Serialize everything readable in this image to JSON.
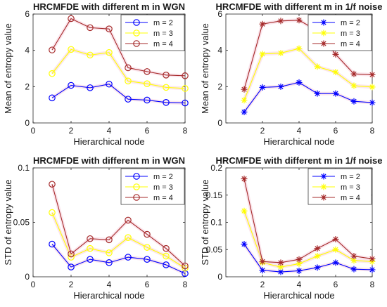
{
  "chart_data": [
    {
      "type": "line",
      "title": "HRCMFDE with different m in WGN",
      "xlabel": "Hierarchical node",
      "ylabel": "Mean of entropy value",
      "xlim": [
        0,
        8
      ],
      "ylim": [
        0,
        6
      ],
      "xticks": [
        "0",
        "2",
        "4",
        "6",
        "8"
      ],
      "yticks": [
        "0",
        "2",
        "4",
        "6"
      ],
      "marker": "circle",
      "legend_position": "top-right",
      "x": [
        1,
        2,
        3,
        4,
        5,
        6,
        7,
        8
      ],
      "series": [
        {
          "name": "m = 2",
          "color": "#0000ff",
          "values": [
            1.38,
            2.07,
            1.94,
            2.14,
            1.31,
            1.26,
            1.13,
            1.1
          ]
        },
        {
          "name": "m = 3",
          "color": "#ffff00",
          "values": [
            2.72,
            4.05,
            3.74,
            3.88,
            2.31,
            2.16,
            1.96,
            1.9
          ]
        },
        {
          "name": "m = 4",
          "color": "#a52a2a",
          "values": [
            4.02,
            5.75,
            5.25,
            5.18,
            3.04,
            2.83,
            2.64,
            2.6
          ]
        }
      ]
    },
    {
      "type": "line",
      "title": "HRCMFDE with different m in 1/f noise",
      "xlabel": "Hierarchical node",
      "ylabel": "Mean of entropy value",
      "xlim": [
        0,
        8
      ],
      "ylim": [
        0,
        6
      ],
      "xticks": [
        "2",
        "4",
        "6",
        "8"
      ],
      "yticks": [
        "0",
        "2",
        "4",
        "6"
      ],
      "marker": "star",
      "legend_position": "top-right",
      "x": [
        1,
        2,
        3,
        4,
        5,
        6,
        7,
        8
      ],
      "series": [
        {
          "name": "m = 2",
          "color": "#0000ff",
          "values": [
            0.6,
            1.96,
            2.0,
            2.23,
            1.62,
            1.62,
            1.19,
            1.12
          ]
        },
        {
          "name": "m = 3",
          "color": "#ffff00",
          "values": [
            1.25,
            3.8,
            3.85,
            4.1,
            3.1,
            2.8,
            2.05,
            1.98
          ]
        },
        {
          "name": "m = 4",
          "color": "#a52a2a",
          "values": [
            1.85,
            5.45,
            5.62,
            5.66,
            5.08,
            3.78,
            2.7,
            2.66
          ]
        }
      ]
    },
    {
      "type": "line",
      "title": "HRCMFDE with different m in WGN",
      "xlabel": "Hierarchical node",
      "ylabel": "STD of entropy value",
      "xlim": [
        0,
        8
      ],
      "ylim": [
        0,
        0.1
      ],
      "xticks": [
        "0",
        "2",
        "4",
        "6",
        "8"
      ],
      "yticks": [
        "0",
        "0.05",
        "0.1"
      ],
      "marker": "circle",
      "legend_position": "top-right",
      "x": [
        1,
        2,
        3,
        4,
        5,
        6,
        7,
        8
      ],
      "series": [
        {
          "name": "m = 2",
          "color": "#0000ff",
          "values": [
            0.03,
            0.009,
            0.016,
            0.013,
            0.018,
            0.016,
            0.011,
            0.003
          ]
        },
        {
          "name": "m = 3",
          "color": "#ffff00",
          "values": [
            0.059,
            0.018,
            0.026,
            0.022,
            0.036,
            0.027,
            0.019,
            0.008
          ]
        },
        {
          "name": "m = 4",
          "color": "#a52a2a",
          "values": [
            0.085,
            0.021,
            0.035,
            0.034,
            0.052,
            0.039,
            0.026,
            0.01
          ]
        }
      ]
    },
    {
      "type": "line",
      "title": "HRCMFDE with different m in 1/f noise",
      "xlabel": "Hierarchical node",
      "ylabel": "STD of entropy value",
      "xlim": [
        0,
        8
      ],
      "ylim": [
        0,
        0.2
      ],
      "xticks": [
        "2",
        "4",
        "6",
        "8"
      ],
      "yticks": [
        "0",
        "0.05",
        "0.1",
        "0.15",
        "0.2"
      ],
      "marker": "star",
      "legend_position": "top-right",
      "x": [
        1,
        2,
        3,
        4,
        5,
        6,
        7,
        8
      ],
      "series": [
        {
          "name": "m = 2",
          "color": "#0000ff",
          "values": [
            0.06,
            0.012,
            0.009,
            0.011,
            0.017,
            0.026,
            0.014,
            0.013
          ]
        },
        {
          "name": "m = 3",
          "color": "#ffff00",
          "values": [
            0.121,
            0.026,
            0.018,
            0.024,
            0.038,
            0.05,
            0.03,
            0.028
          ]
        },
        {
          "name": "m = 4",
          "color": "#a52a2a",
          "values": [
            0.18,
            0.028,
            0.026,
            0.032,
            0.052,
            0.069,
            0.038,
            0.033
          ]
        }
      ]
    }
  ]
}
